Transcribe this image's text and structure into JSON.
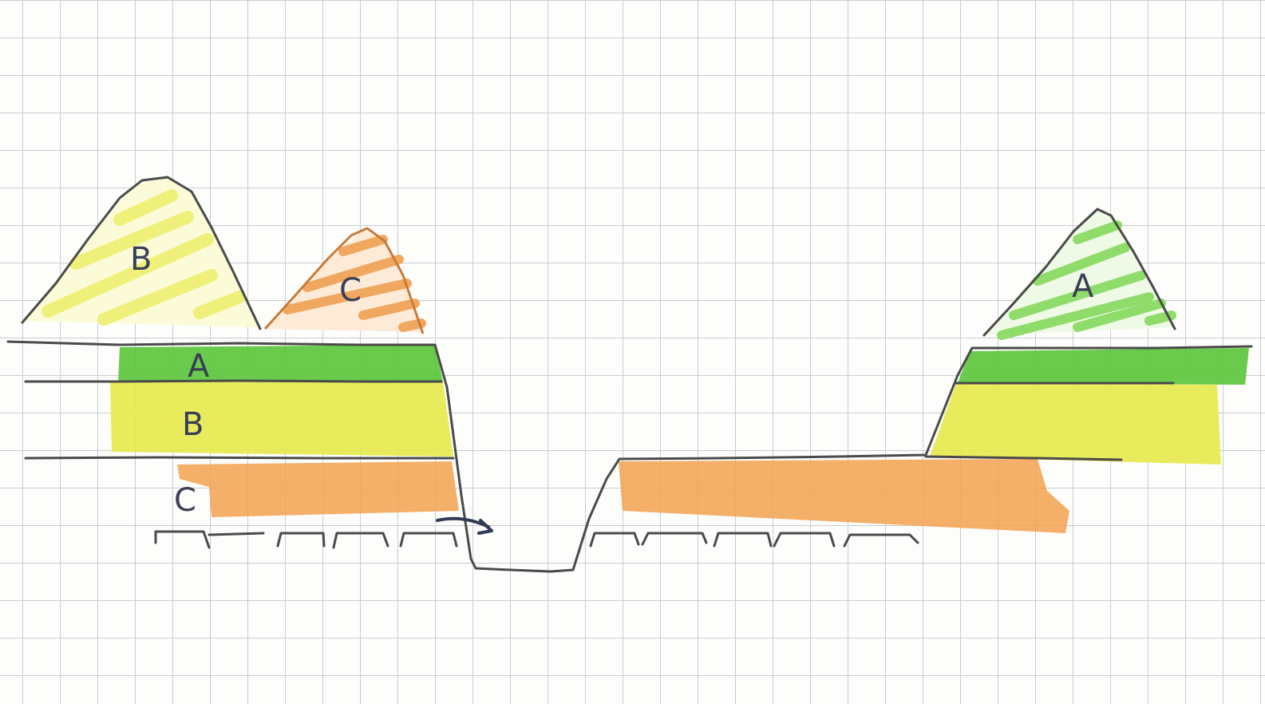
{
  "colors": {
    "paper": "#fdfdfc",
    "grid": "#c9cdd1",
    "ink": "#4a4a4a",
    "pen_blue": "#3b3f55",
    "layer_a": "#5cc63c",
    "layer_b": "#e6ea4a",
    "layer_c": "#f2a24f",
    "hatch_a": "#8fdc6a",
    "hatch_b": "#eef07a",
    "hatch_c": "#f0a860"
  },
  "layers": [
    {
      "id": "A",
      "label": "A"
    },
    {
      "id": "B",
      "label": "B"
    },
    {
      "id": "C",
      "label": "C"
    }
  ],
  "stockpiles": [
    {
      "id": "pile-b",
      "label": "B"
    },
    {
      "id": "pile-c",
      "label": "C"
    },
    {
      "id": "pile-a",
      "label": "A"
    }
  ],
  "icons": {
    "arrow": "curved-arrow-icon"
  }
}
